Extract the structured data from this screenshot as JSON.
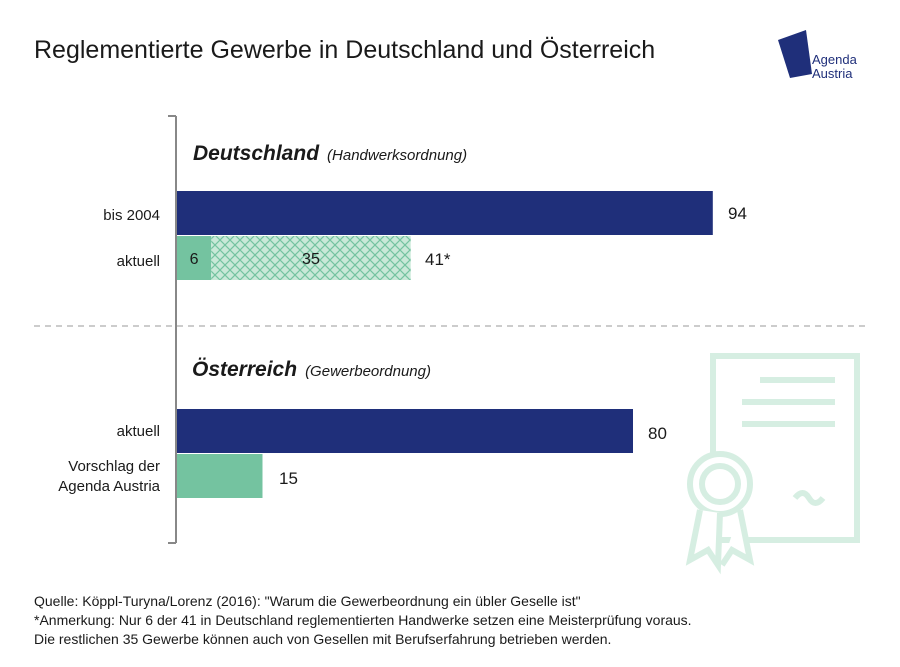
{
  "title": "Reglementierte Gewerbe in Deutschland und Österreich",
  "logo": {
    "line1": "Agenda",
    "line2": "Austria"
  },
  "colors": {
    "navy": "#1f2f7a",
    "green": "#74c3a0",
    "green_light": "#c9e9d8",
    "decor": "#d6eee2",
    "axis": "#888888"
  },
  "chart_data": {
    "type": "bar",
    "orientation": "horizontal",
    "title": "Reglementierte Gewerbe in Deutschland und Österreich",
    "xlim": [
      0,
      100
    ],
    "groups": [
      {
        "name": "Deutschland",
        "subtitle": "(Handwerksordnung)",
        "bars": [
          {
            "label": "bis 2004",
            "segments": [
              {
                "value": 94,
                "style": "navy"
              }
            ],
            "total_label": "94"
          },
          {
            "label": "aktuell",
            "segments": [
              {
                "value": 6,
                "style": "green",
                "label": "6"
              },
              {
                "value": 35,
                "style": "hatched",
                "label": "35"
              }
            ],
            "total_label": "41*"
          }
        ]
      },
      {
        "name": "Österreich",
        "subtitle": "(Gewerbeordnung)",
        "bars": [
          {
            "label": "aktuell",
            "segments": [
              {
                "value": 80,
                "style": "navy"
              }
            ],
            "total_label": "80"
          },
          {
            "label": "Vorschlag der Agenda Austria",
            "label_lines": [
              "Vorschlag der",
              "Agenda Austria"
            ],
            "segments": [
              {
                "value": 15,
                "style": "green"
              }
            ],
            "total_label": "15"
          }
        ]
      }
    ]
  },
  "notes": [
    "Quelle: Köppl-Turyna/Lorenz (2016): \"Warum die Gewerbeordnung ein übler Geselle ist\"",
    "*Anmerkung: Nur 6 der 41 in Deutschland reglementierten Handwerke setzen eine Meisterprüfung voraus.",
    "Die restlichen 35 Gewerbe können auch von Gesellen mit Berufserfahrung betrieben werden."
  ]
}
